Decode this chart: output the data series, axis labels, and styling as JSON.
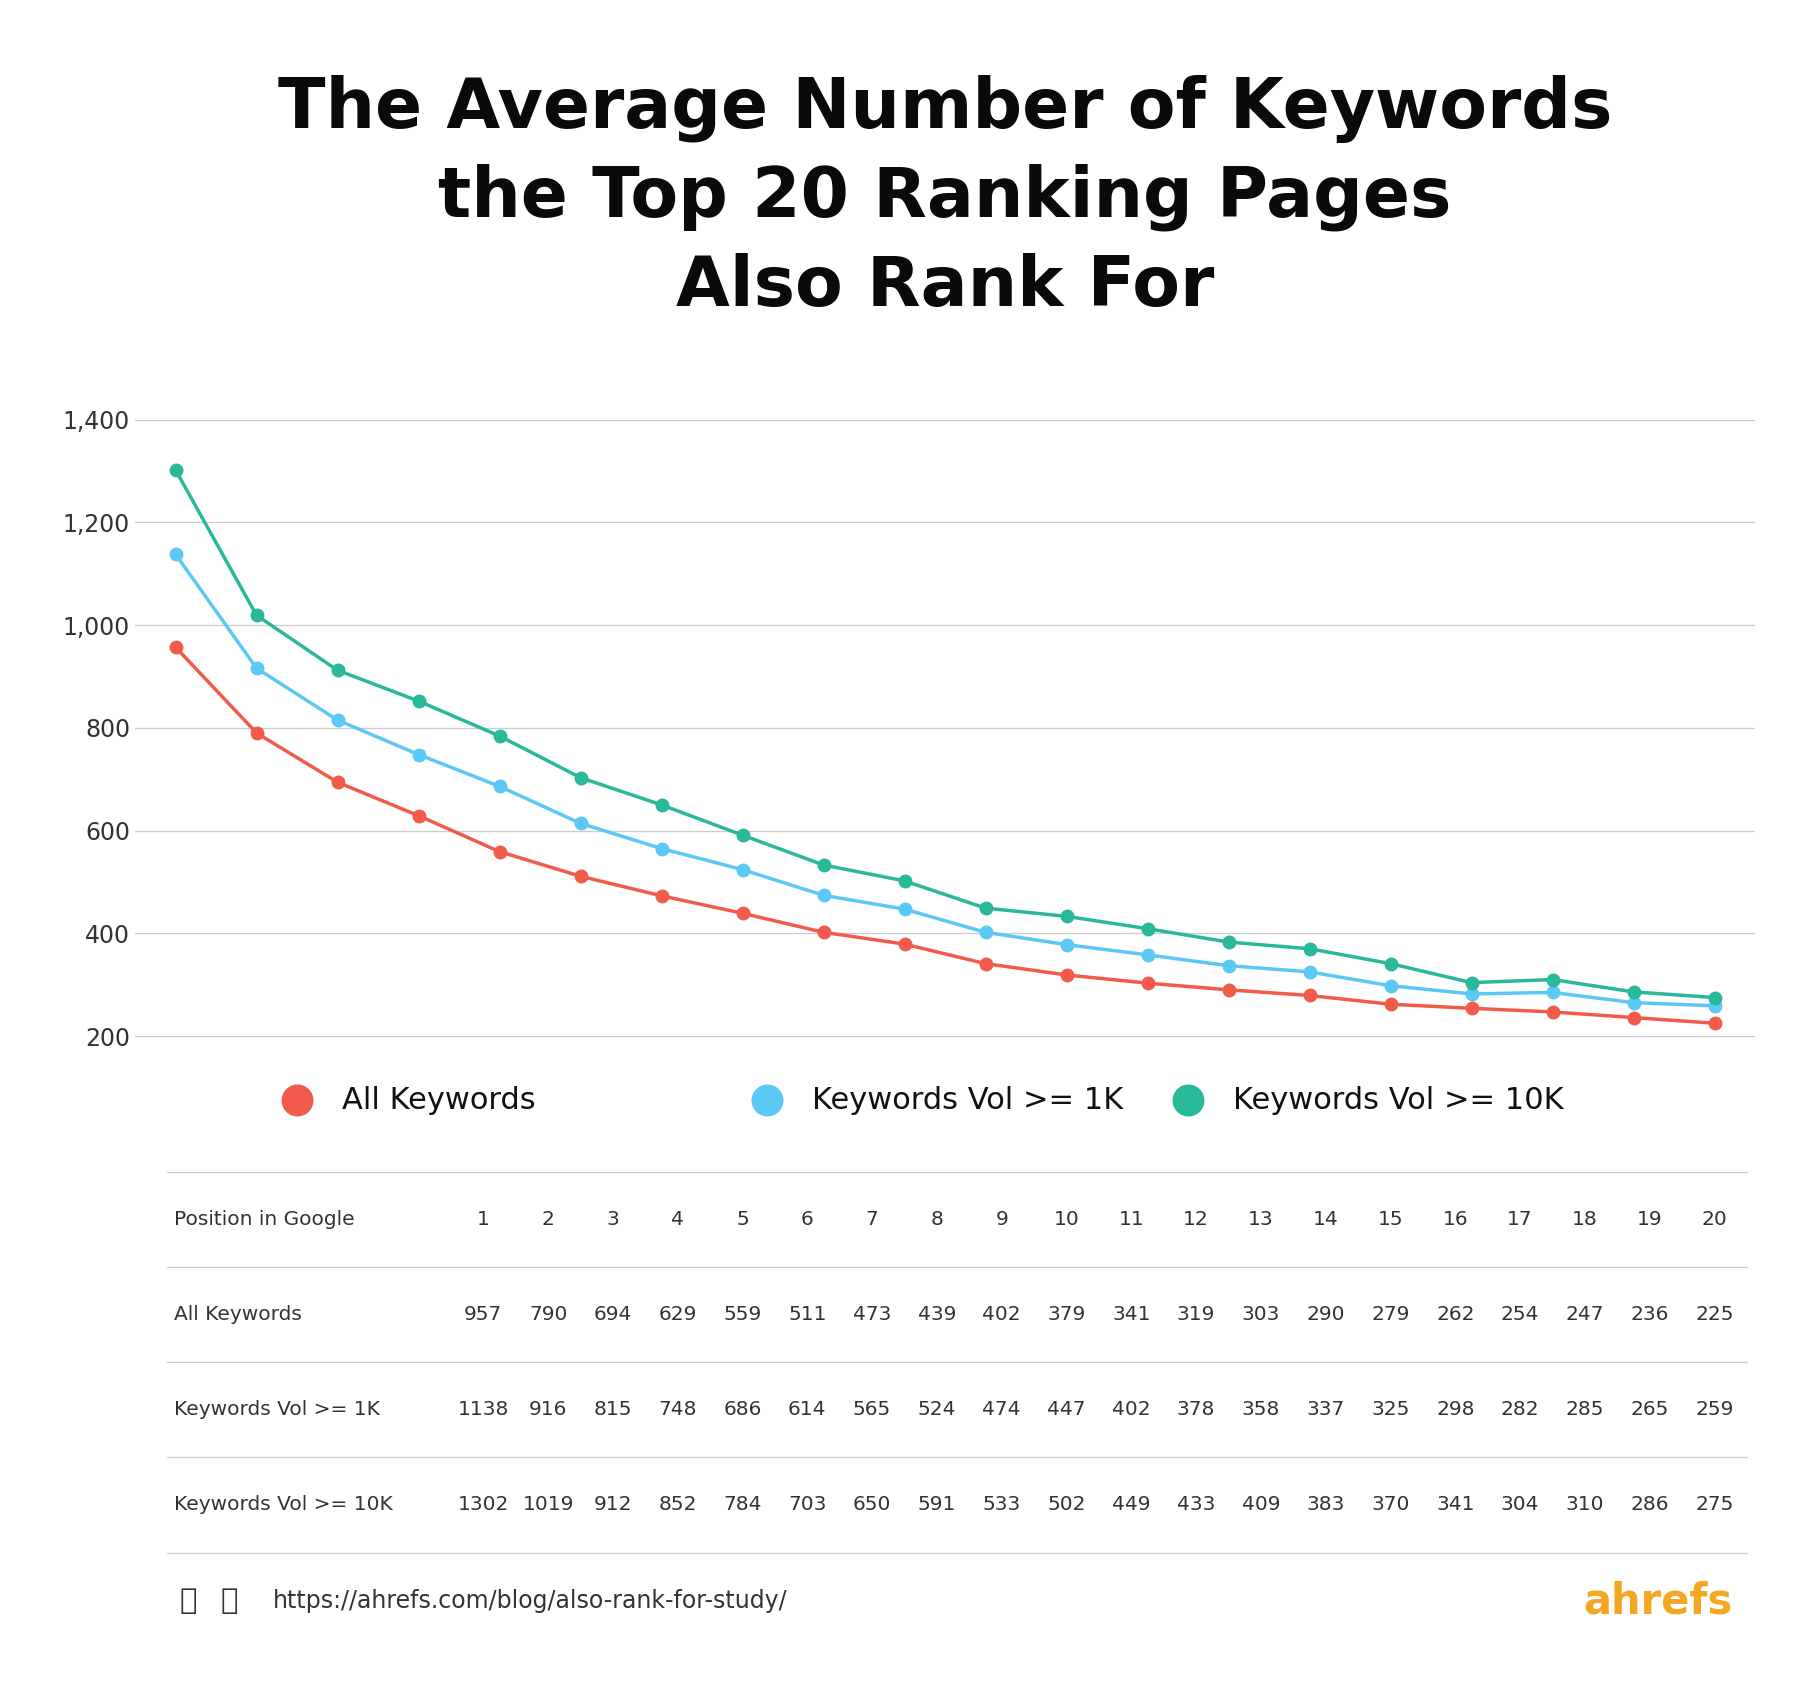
{
  "title": "The Average Number of Keywords\nthe Top 20 Ranking Pages\nAlso Rank For",
  "positions": [
    1,
    2,
    3,
    4,
    5,
    6,
    7,
    8,
    9,
    10,
    11,
    12,
    13,
    14,
    15,
    16,
    17,
    18,
    19,
    20
  ],
  "all_keywords": [
    957,
    790,
    694,
    629,
    559,
    511,
    473,
    439,
    402,
    379,
    341,
    319,
    303,
    290,
    279,
    262,
    254,
    247,
    236,
    225
  ],
  "keywords_1k": [
    1138,
    916,
    815,
    748,
    686,
    614,
    565,
    524,
    474,
    447,
    402,
    378,
    358,
    337,
    325,
    298,
    282,
    285,
    265,
    259
  ],
  "keywords_10k": [
    1302,
    1019,
    912,
    852,
    784,
    703,
    650,
    591,
    533,
    502,
    449,
    433,
    409,
    383,
    370,
    341,
    304,
    310,
    286,
    275
  ],
  "color_all": "#f25b4b",
  "color_1k": "#5bc8f5",
  "color_10k": "#2ab89a",
  "legend_labels": [
    "All Keywords",
    "Keywords Vol >= 1K",
    "Keywords Vol >= 10K"
  ],
  "ylabel_ticks": [
    200,
    400,
    600,
    800,
    1000,
    1200,
    1400
  ],
  "ylim": [
    175,
    1470
  ],
  "bg_color": "#ffffff",
  "grid_color": "#cccccc",
  "ahrefs_orange": "#f5a623",
  "text_color": "#333333",
  "url_text": "https://ahrefs.com/blog/also-rank-for-study/",
  "table_row_labels": [
    "Position in Google",
    "All Keywords",
    "Keywords Vol >= 1K",
    "Keywords Vol >= 10K"
  ],
  "line_width": 2.5,
  "marker_size": 9
}
